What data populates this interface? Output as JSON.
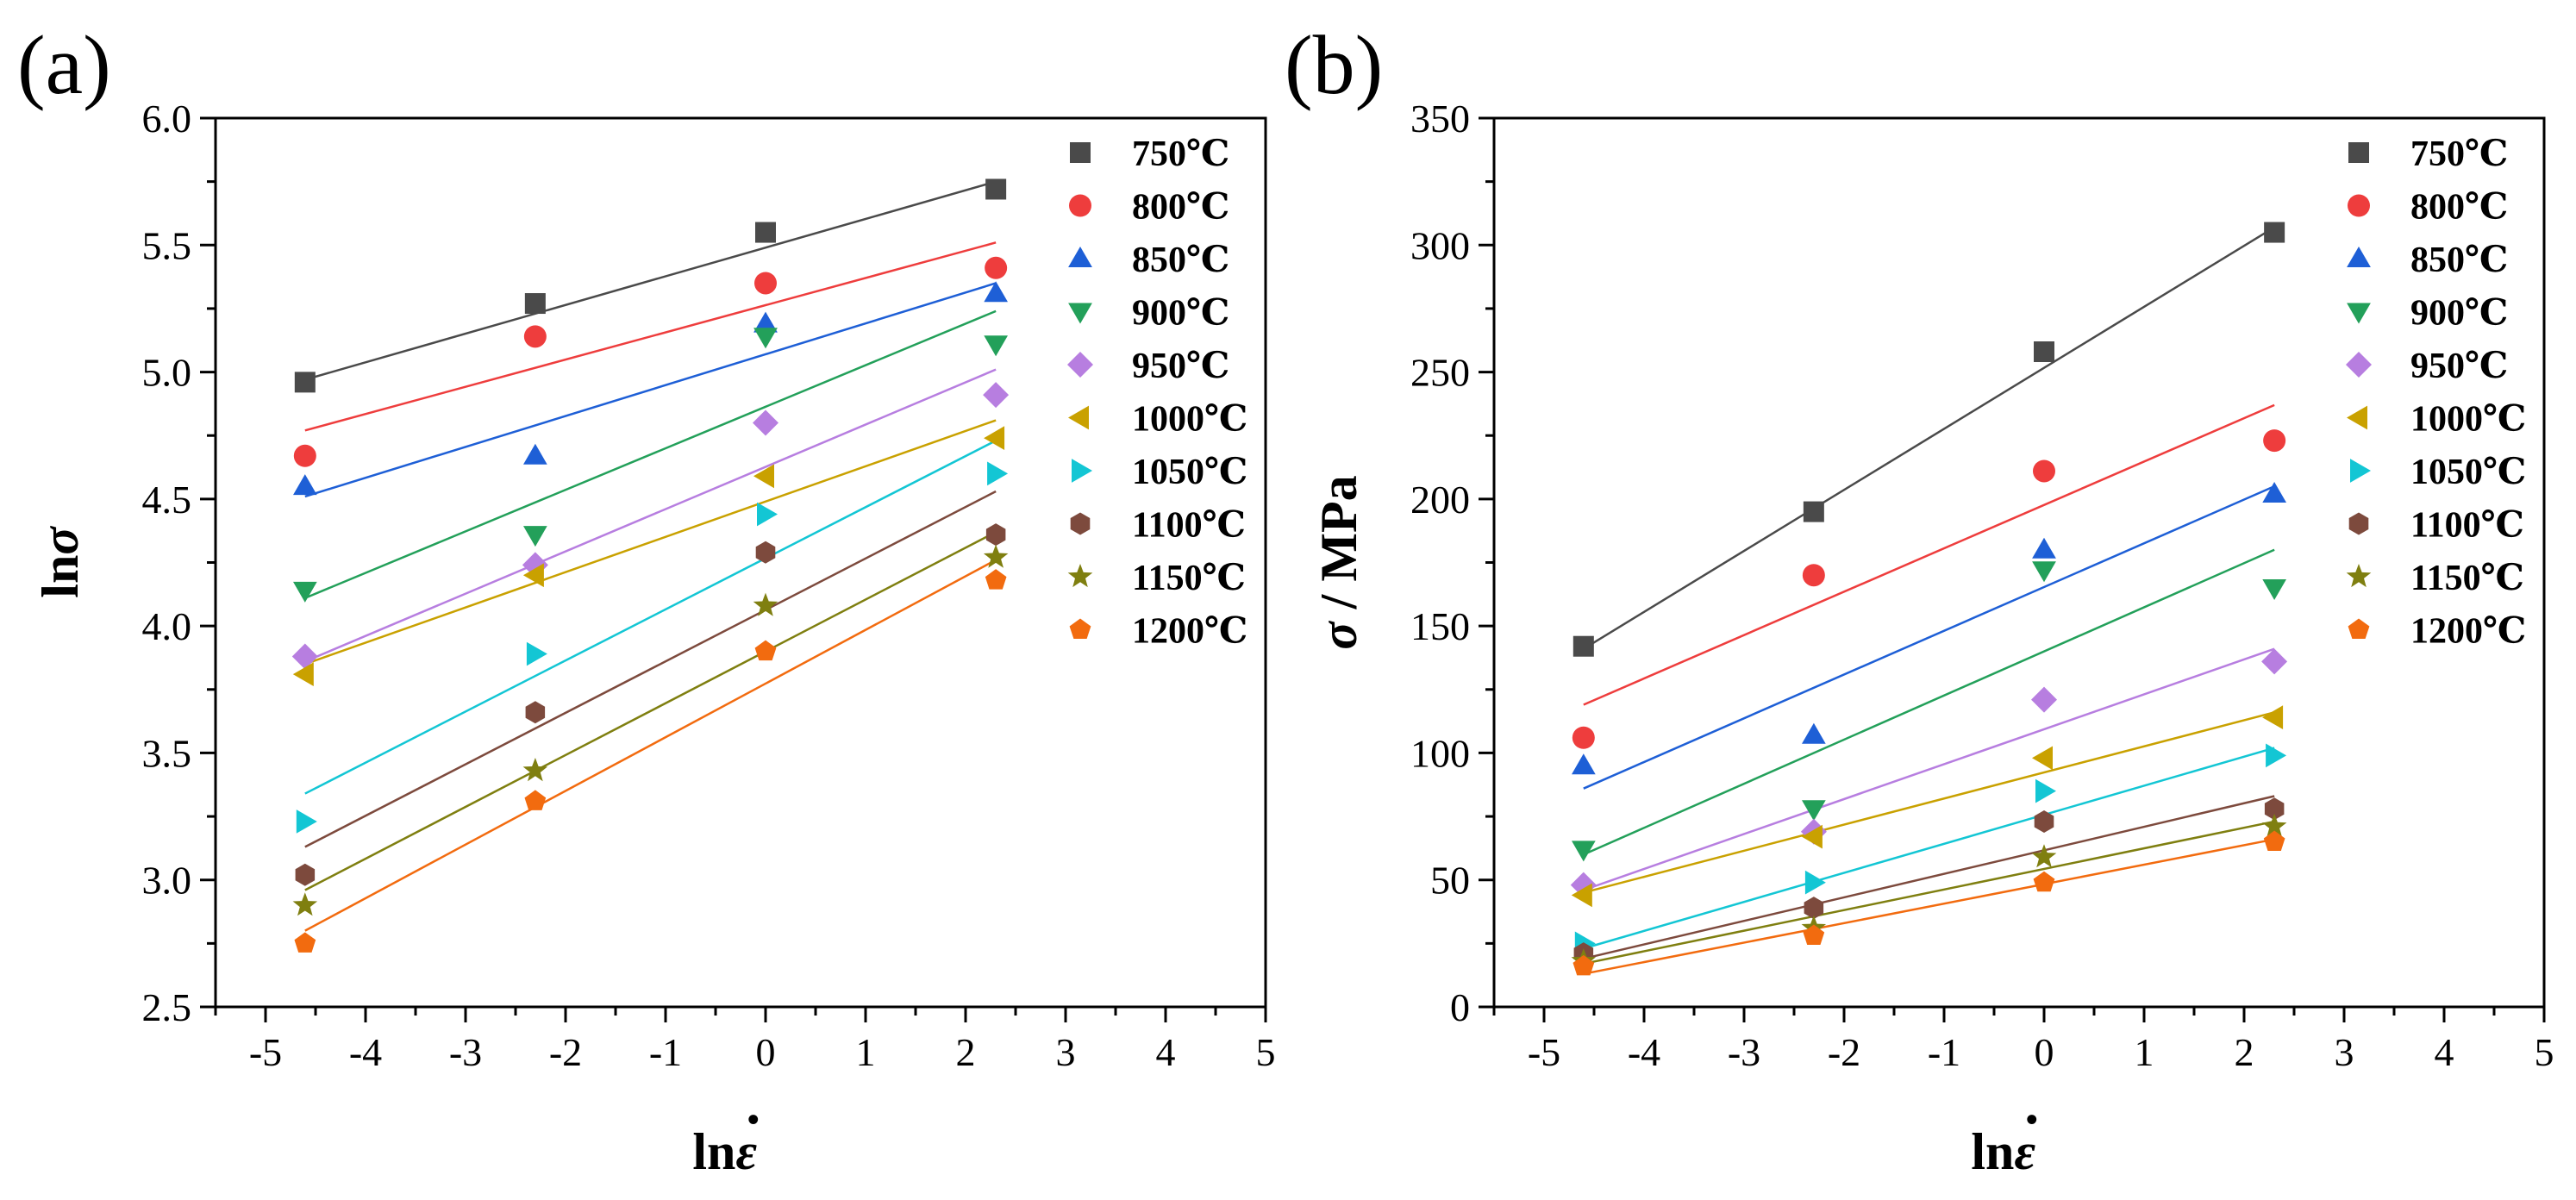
{
  "chart_data": [
    {
      "panel_label": "(a)",
      "type": "scatter",
      "title": "",
      "xlabel": "lnε̇",
      "xlabel_base": "ln",
      "xlabel_sym": "ε",
      "xlabel_dot": "•",
      "ylabel": "lnσ",
      "ylabel_base": "ln",
      "ylabel_sym": "σ",
      "xlim": [
        -5.5,
        5
      ],
      "ylim": [
        2.5,
        6.0
      ],
      "xticks": [
        -5,
        -4,
        -3,
        -2,
        -1,
        0,
        1,
        2,
        3,
        4,
        5
      ],
      "xtick_labels": [
        "-5",
        "-4",
        "-3",
        "-2",
        "-1",
        "0",
        "1",
        "2",
        "3",
        "4",
        "5"
      ],
      "yticks": [
        2.5,
        3.0,
        3.5,
        4.0,
        4.5,
        5.0,
        5.5,
        6.0
      ],
      "ytick_labels": [
        "2.5",
        "3.0",
        "3.5",
        "4.0",
        "4.5",
        "5.0",
        "5.5",
        "6.0"
      ],
      "grid": false,
      "legend_position": "top-right",
      "x": [
        -4.605,
        -2.303,
        0,
        2.303
      ],
      "series": [
        {
          "name": "750℃",
          "marker": "square",
          "color": "#4a4a4a",
          "values": [
            4.96,
            5.27,
            5.55,
            5.72
          ],
          "fit": [
            4.97,
            5.75
          ]
        },
        {
          "name": "800℃",
          "marker": "circle",
          "color": "#ee3d3d",
          "values": [
            4.67,
            5.14,
            5.35,
            5.41
          ],
          "fit": [
            4.77,
            5.51
          ]
        },
        {
          "name": "850℃",
          "marker": "triangle-up",
          "color": "#1e5fd6",
          "values": [
            4.55,
            4.67,
            5.19,
            5.31
          ],
          "fit": [
            4.51,
            5.35
          ]
        },
        {
          "name": "900℃",
          "marker": "triangle-down",
          "color": "#23a05a",
          "values": [
            4.14,
            4.36,
            5.14,
            5.11
          ],
          "fit": [
            4.11,
            5.24
          ]
        },
        {
          "name": "950℃",
          "marker": "diamond",
          "color": "#b77ee0",
          "values": [
            3.88,
            4.24,
            4.8,
            4.91
          ],
          "fit": [
            3.86,
            5.01
          ]
        },
        {
          "name": "1000℃",
          "marker": "triangle-left",
          "color": "#c9a100",
          "values": [
            3.81,
            4.2,
            4.59,
            4.74
          ],
          "fit": [
            3.85,
            4.81
          ]
        },
        {
          "name": "1050℃",
          "marker": "triangle-right",
          "color": "#13c6d4",
          "values": [
            3.23,
            3.89,
            4.44,
            4.6
          ],
          "fit": [
            3.34,
            4.73
          ]
        },
        {
          "name": "1100℃",
          "marker": "hexagon",
          "color": "#7d4a3d",
          "values": [
            3.02,
            3.66,
            4.29,
            4.36
          ],
          "fit": [
            3.13,
            4.53
          ]
        },
        {
          "name": "1150℃",
          "marker": "star",
          "color": "#7f7f10",
          "values": [
            2.9,
            3.43,
            4.08,
            4.27
          ],
          "fit": [
            2.96,
            4.37
          ]
        },
        {
          "name": "1200℃",
          "marker": "pentagon",
          "color": "#f26b0f",
          "values": [
            2.75,
            3.31,
            3.9,
            4.18
          ],
          "fit": [
            2.8,
            4.26
          ]
        }
      ]
    },
    {
      "panel_label": "(b)",
      "type": "scatter",
      "title": "",
      "xlabel": "lnε̇",
      "xlabel_base": "ln",
      "xlabel_sym": "ε",
      "xlabel_dot": "•",
      "ylabel": "σ / MPa",
      "ylabel_sym": "σ",
      "ylabel_rest": " / MPa",
      "xlim": [
        -5.5,
        5
      ],
      "ylim": [
        0,
        350
      ],
      "xticks": [
        -5,
        -4,
        -3,
        -2,
        -1,
        0,
        1,
        2,
        3,
        4,
        5
      ],
      "xtick_labels": [
        "-5",
        "-4",
        "-3",
        "-2",
        "-1",
        "0",
        "1",
        "2",
        "3",
        "4",
        "5"
      ],
      "yticks": [
        0,
        50,
        100,
        150,
        200,
        250,
        300,
        350
      ],
      "ytick_labels": [
        "0",
        "50",
        "100",
        "150",
        "200",
        "250",
        "300",
        "350"
      ],
      "grid": false,
      "legend_position": "top-right",
      "x": [
        -4.605,
        -2.303,
        0,
        2.303
      ],
      "series": [
        {
          "name": "750℃",
          "marker": "square",
          "color": "#4a4a4a",
          "values": [
            142,
            195,
            258,
            305
          ],
          "fit": [
            141,
            307
          ]
        },
        {
          "name": "800℃",
          "marker": "circle",
          "color": "#ee3d3d",
          "values": [
            106,
            170,
            211,
            223
          ],
          "fit": [
            119,
            237
          ]
        },
        {
          "name": "850℃",
          "marker": "triangle-up",
          "color": "#1e5fd6",
          "values": [
            95,
            107,
            180,
            202
          ],
          "fit": [
            86,
            205
          ]
        },
        {
          "name": "900℃",
          "marker": "triangle-down",
          "color": "#23a05a",
          "values": [
            62,
            78,
            172,
            165
          ],
          "fit": [
            60,
            180
          ]
        },
        {
          "name": "950℃",
          "marker": "diamond",
          "color": "#b77ee0",
          "values": [
            48,
            69,
            121,
            136
          ],
          "fit": [
            46,
            141
          ]
        },
        {
          "name": "1000℃",
          "marker": "triangle-left",
          "color": "#c9a100",
          "values": [
            44,
            67,
            98,
            114
          ],
          "fit": [
            45,
            116
          ]
        },
        {
          "name": "1050℃",
          "marker": "triangle-right",
          "color": "#13c6d4",
          "values": [
            25,
            49,
            85,
            99
          ],
          "fit": [
            23,
            102
          ]
        },
        {
          "name": "1100℃",
          "marker": "hexagon",
          "color": "#7d4a3d",
          "values": [
            21,
            39,
            73,
            78
          ],
          "fit": [
            19,
            83
          ]
        },
        {
          "name": "1150℃",
          "marker": "star",
          "color": "#7f7f10",
          "values": [
            18,
            31,
            59,
            71
          ],
          "fit": [
            17,
            73
          ]
        },
        {
          "name": "1200℃",
          "marker": "pentagon",
          "color": "#f26b0f",
          "values": [
            16,
            28,
            49,
            65
          ],
          "fit": [
            13,
            66
          ]
        }
      ]
    }
  ]
}
